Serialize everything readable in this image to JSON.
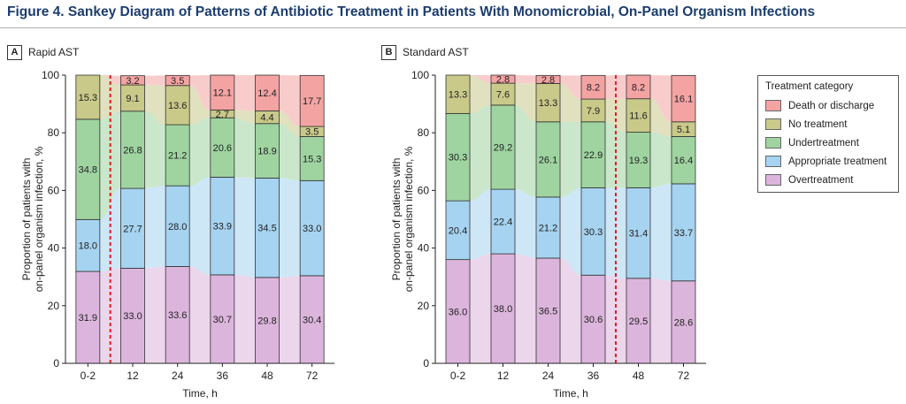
{
  "figure": {
    "title": "Figure 4. Sankey Diagram of Patterns of Antibiotic Treatment in Patients With Monomicrobial, On-Panel Organism Infections"
  },
  "legend": {
    "title": "Treatment category",
    "items": [
      {
        "label": "Death or discharge",
        "color": "#f4a3a3"
      },
      {
        "label": "No treatment",
        "color": "#c9c98a"
      },
      {
        "label": "Undertreatment",
        "color": "#9fd4a1"
      },
      {
        "label": "Appropriate treatment",
        "color": "#a6d3f0"
      },
      {
        "label": "Overtreatment",
        "color": "#dcb5dc"
      }
    ]
  },
  "chart_data": [
    {
      "panel_letter": "A",
      "panel_title": "Rapid AST",
      "type": "bar",
      "stacked": true,
      "xlabel": "Time, h",
      "ylabel": "Proportion of patients with on-panel organism infection, %",
      "ylabel_lines": [
        "Proportion of patients with",
        "on-panel organism infection, %"
      ],
      "ylim": [
        0,
        100
      ],
      "yticks": [
        "0",
        "20",
        "40",
        "60",
        "80",
        "100"
      ],
      "categories": [
        "0-2",
        "12",
        "24",
        "36",
        "48",
        "72"
      ],
      "intervention_line_after_index": 0,
      "series": [
        {
          "name": "Overtreatment",
          "values": [
            31.9,
            33.0,
            33.6,
            30.7,
            29.8,
            30.4
          ],
          "labels": [
            "31.9",
            "33.0",
            "33.6",
            "30.7",
            "29.8",
            "30.4"
          ]
        },
        {
          "name": "Appropriate treatment",
          "values": [
            18.0,
            27.7,
            28.0,
            33.9,
            34.5,
            33.0
          ],
          "labels": [
            "18.0",
            "27.7",
            "28.0",
            "33.9",
            "34.5",
            "33.0"
          ]
        },
        {
          "name": "Undertreatment",
          "values": [
            34.8,
            26.8,
            21.2,
            20.6,
            18.9,
            15.3
          ],
          "labels": [
            "34.8",
            "26.8",
            "21.2",
            "20.6",
            "18.9",
            "15.3"
          ]
        },
        {
          "name": "No treatment",
          "values": [
            15.3,
            9.1,
            13.6,
            2.7,
            4.4,
            3.5
          ],
          "labels": [
            "15.3",
            "9.1",
            "13.6",
            "2.7",
            "4.4",
            "3.5"
          ]
        },
        {
          "name": "Death or discharge",
          "values": [
            0,
            3.2,
            3.5,
            12.1,
            12.4,
            17.7
          ],
          "labels": [
            "",
            "3.2",
            "3.5",
            "12.1",
            "12.4",
            "17.7"
          ]
        }
      ]
    },
    {
      "panel_letter": "B",
      "panel_title": "Standard AST",
      "type": "bar",
      "stacked": true,
      "xlabel": "Time, h",
      "ylabel": "Proportion of patients with on-panel organism infection, %",
      "ylabel_lines": [
        "Proportion of patients with",
        "on-panel organism infection, %"
      ],
      "ylim": [
        0,
        100
      ],
      "yticks": [
        "0",
        "20",
        "40",
        "60",
        "80",
        "100"
      ],
      "categories": [
        "0-2",
        "12",
        "24",
        "36",
        "48",
        "72"
      ],
      "intervention_line_after_index": 3,
      "series": [
        {
          "name": "Overtreatment",
          "values": [
            36.0,
            38.0,
            36.5,
            30.6,
            29.5,
            28.6
          ],
          "labels": [
            "36.0",
            "38.0",
            "36.5",
            "30.6",
            "29.5",
            "28.6"
          ]
        },
        {
          "name": "Appropriate treatment",
          "values": [
            20.4,
            22.4,
            21.2,
            30.3,
            31.4,
            33.7
          ],
          "labels": [
            "20.4",
            "22.4",
            "21.2",
            "30.3",
            "31.4",
            "33.7"
          ]
        },
        {
          "name": "Undertreatment",
          "values": [
            30.3,
            29.2,
            26.1,
            22.9,
            19.3,
            16.4
          ],
          "labels": [
            "30.3",
            "29.2",
            "26.1",
            "22.9",
            "19.3",
            "16.4"
          ]
        },
        {
          "name": "No treatment",
          "values": [
            13.3,
            7.6,
            13.3,
            7.9,
            11.6,
            5.1
          ],
          "labels": [
            "13.3",
            "7.6",
            "13.3",
            "7.9",
            "11.6",
            "5.1"
          ]
        },
        {
          "name": "Death or discharge",
          "values": [
            0,
            2.8,
            2.8,
            8.2,
            8.2,
            16.1
          ],
          "labels": [
            "",
            "2.8",
            "2.8",
            "8.2",
            "8.2",
            "16.1"
          ]
        }
      ]
    }
  ]
}
